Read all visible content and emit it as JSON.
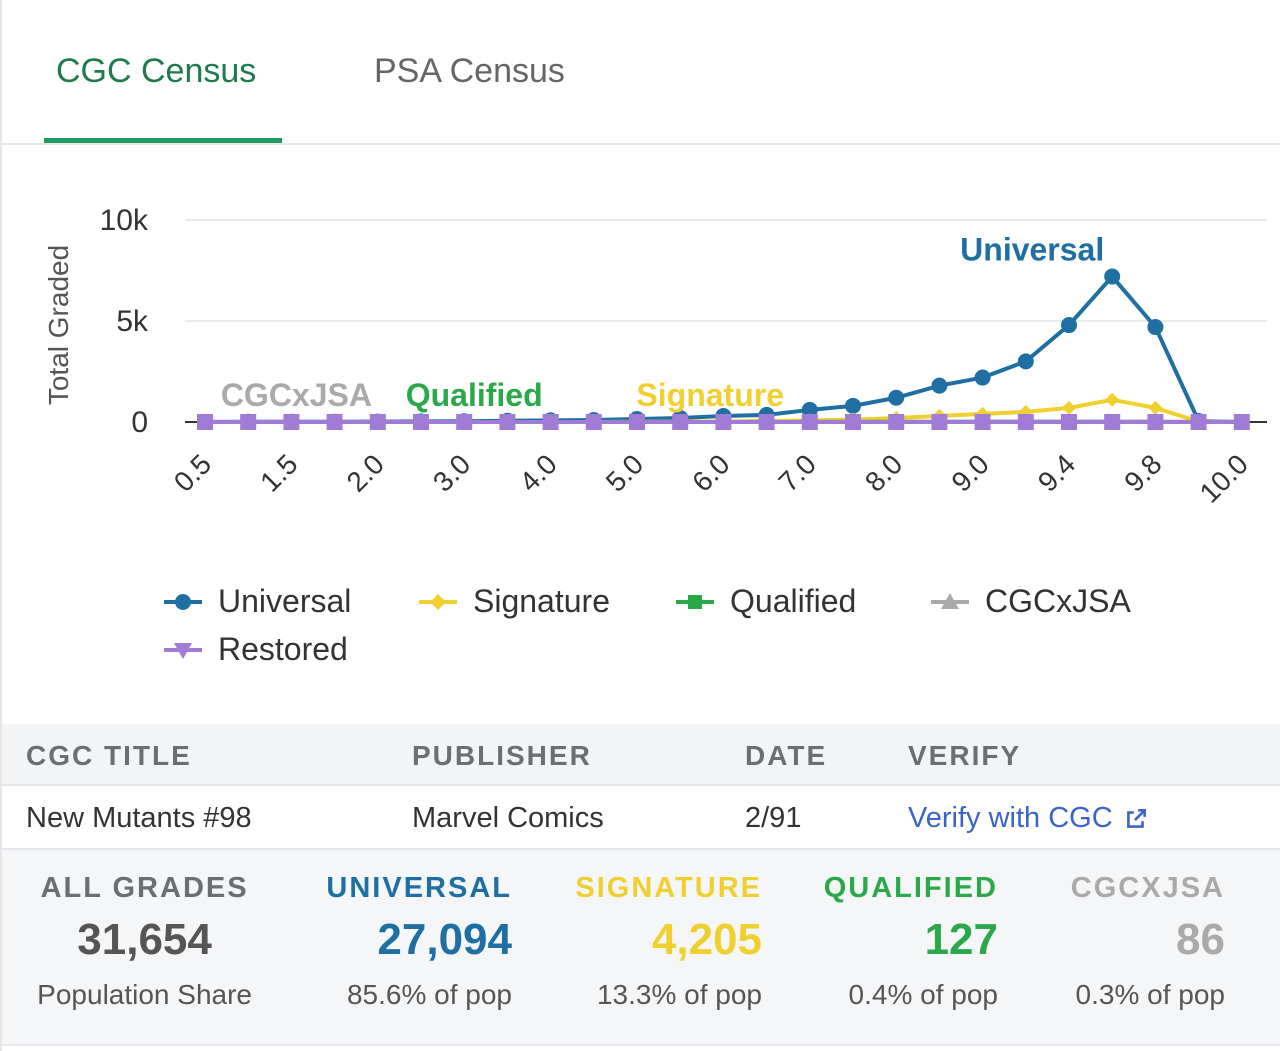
{
  "tabs": [
    {
      "label": "CGC Census",
      "active": true
    },
    {
      "label": "PSA Census",
      "active": false
    }
  ],
  "colors": {
    "universal": "#1f6fa3",
    "signature": "#f0d030",
    "qualified": "#2ba84a",
    "cgcxjsa": "#aaaaaa",
    "restored": "#a07cd6",
    "accent": "#1f9a63",
    "link": "#3b63c9"
  },
  "chart_data": {
    "type": "line",
    "ylabel": "Total Graded",
    "ylim": [
      0,
      10000
    ],
    "yticks": [
      "10k",
      "5k",
      "0"
    ],
    "yticks_values": [
      10000,
      5000,
      0
    ],
    "x": [
      "0.5",
      "1.0",
      "1.5",
      "1.8",
      "2.0",
      "2.5",
      "3.0",
      "3.5",
      "4.0",
      "4.5",
      "5.0",
      "5.5",
      "6.0",
      "6.5",
      "7.0",
      "7.5",
      "8.0",
      "8.5",
      "9.0",
      "9.2",
      "9.4",
      "9.6",
      "9.8",
      "9.9",
      "10.0"
    ],
    "xtick_labels": [
      "0.5",
      "1.5",
      "2.0",
      "3.0",
      "4.0",
      "5.0",
      "6.0",
      "7.0",
      "8.0",
      "9.0",
      "9.4",
      "9.8",
      "10.0"
    ],
    "series": [
      {
        "name": "Universal",
        "color_key": "universal",
        "marker": "circle",
        "values": [
          5,
          10,
          10,
          15,
          20,
          30,
          40,
          60,
          80,
          100,
          150,
          200,
          300,
          350,
          600,
          800,
          1200,
          1800,
          2200,
          3000,
          4800,
          7200,
          4700,
          50,
          0
        ]
      },
      {
        "name": "Signature",
        "color_key": "signature",
        "marker": "diamond",
        "values": [
          0,
          0,
          0,
          0,
          0,
          0,
          0,
          0,
          0,
          0,
          10,
          20,
          30,
          50,
          80,
          120,
          200,
          300,
          400,
          500,
          700,
          1100,
          700,
          20,
          0
        ]
      },
      {
        "name": "Qualified",
        "color_key": "qualified",
        "marker": "square",
        "values": [
          0,
          0,
          0,
          0,
          0,
          0,
          0,
          0,
          0,
          0,
          0,
          0,
          0,
          0,
          5,
          10,
          10,
          15,
          20,
          20,
          20,
          15,
          10,
          0,
          0
        ]
      },
      {
        "name": "CGCxJSA",
        "color_key": "cgcxjsa",
        "marker": "triangle",
        "values": [
          0,
          0,
          0,
          0,
          0,
          0,
          0,
          0,
          0,
          0,
          0,
          0,
          0,
          0,
          0,
          5,
          5,
          5,
          10,
          10,
          15,
          15,
          10,
          5,
          0
        ]
      },
      {
        "name": "Restored",
        "color_key": "restored",
        "marker": "triangle-down",
        "values": [
          0,
          0,
          0,
          0,
          0,
          0,
          0,
          0,
          0,
          0,
          0,
          0,
          0,
          0,
          0,
          0,
          0,
          0,
          0,
          0,
          0,
          0,
          0,
          0,
          0
        ]
      }
    ],
    "annotations": [
      {
        "text": "Universal",
        "color_key": "universal",
        "x": "9.6",
        "y": 7200
      },
      {
        "text": "Signature",
        "color_key": "signature",
        "x": "5.5",
        "y": 0
      },
      {
        "text": "Qualified",
        "color_key": "qualified",
        "x": "3.0",
        "y": 0
      },
      {
        "text": "CGCxJSA",
        "color_key": "cgcxjsa",
        "x": "1.5",
        "y": 0
      }
    ],
    "legend": [
      "Universal",
      "Signature",
      "Qualified",
      "CGCxJSA",
      "Restored"
    ],
    "legend_position": "bottom",
    "grid": true
  },
  "table": {
    "headers": {
      "title": "CGC TITLE",
      "publisher": "PUBLISHER",
      "date": "DATE",
      "verify": "VERIFY"
    },
    "row": {
      "title": "New Mutants #98",
      "publisher": "Marvel Comics",
      "date": "2/91",
      "verify": "Verify with CGC"
    }
  },
  "stats": [
    {
      "label": "ALL GRADES",
      "value": "31,654",
      "sub": "Population Share",
      "color_key": "all"
    },
    {
      "label": "UNIVERSAL",
      "value": "27,094",
      "sub": "85.6% of pop",
      "color_key": "universal"
    },
    {
      "label": "SIGNATURE",
      "value": "4,205",
      "sub": "13.3% of pop",
      "color_key": "signature"
    },
    {
      "label": "QUALIFIED",
      "value": "127",
      "sub": "0.4% of pop",
      "color_key": "qualified"
    },
    {
      "label": "CGCXJSA",
      "value": "86",
      "sub": "0.3% of pop",
      "color_key": "cgcxjsa"
    }
  ]
}
